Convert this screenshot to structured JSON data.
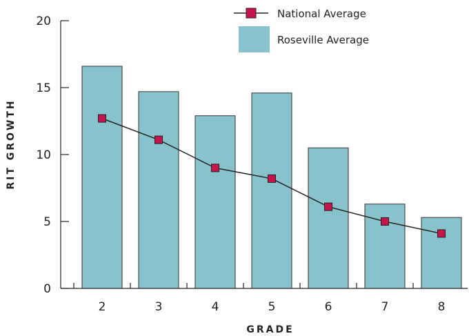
{
  "chart_data": {
    "type": "bar",
    "categories": [
      "2",
      "3",
      "4",
      "5",
      "6",
      "7",
      "8"
    ],
    "series": [
      {
        "name": "Roseville Average",
        "kind": "bar",
        "color": "#88c2cd",
        "values": [
          16.6,
          14.7,
          12.9,
          14.6,
          10.5,
          6.3,
          5.3
        ]
      },
      {
        "name": "National Average",
        "kind": "line",
        "color": "#c8144e",
        "values": [
          12.7,
          11.1,
          9.0,
          8.2,
          6.1,
          5.0,
          4.1
        ]
      }
    ],
    "xlabel": "GRADE",
    "ylabel": "RIT GROWTH",
    "ylim": [
      0,
      20
    ],
    "yticks": [
      "0",
      "5",
      "10",
      "15",
      "20"
    ],
    "grid": false,
    "legend_position": "top-right"
  }
}
